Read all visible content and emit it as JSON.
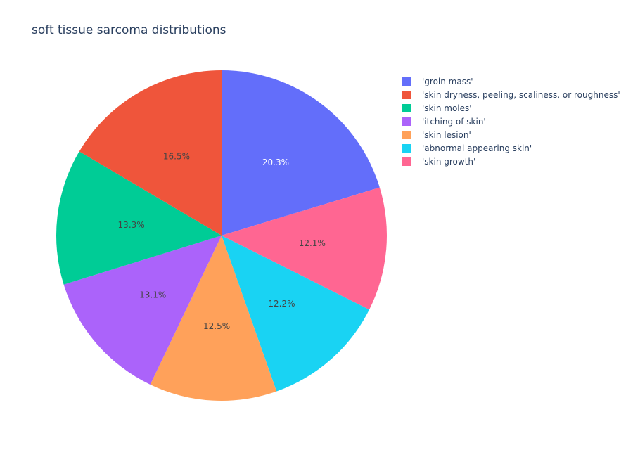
{
  "chart_data": {
    "type": "pie",
    "title": "soft tissue sarcoma distributions",
    "legend_position": "top-right",
    "slices": [
      {
        "label": "'groin mass'",
        "value": 20.3,
        "percent_text": "20.3%",
        "color": "#636efa",
        "text_color": "#ffffff"
      },
      {
        "label": "'skin growth'",
        "value": 12.1,
        "percent_text": "12.1%",
        "color": "#ff6692",
        "text_color": "#444444"
      },
      {
        "label": "'abnormal appearing skin'",
        "value": 12.2,
        "percent_text": "12.2%",
        "color": "#19d3f3",
        "text_color": "#444444"
      },
      {
        "label": "'skin lesion'",
        "value": 12.5,
        "percent_text": "12.5%",
        "color": "#ffa15a",
        "text_color": "#444444"
      },
      {
        "label": "'itching of skin'",
        "value": 13.1,
        "percent_text": "13.1%",
        "color": "#ab63fa",
        "text_color": "#444444"
      },
      {
        "label": "'skin moles'",
        "value": 13.3,
        "percent_text": "13.3%",
        "color": "#00cc96",
        "text_color": "#444444"
      },
      {
        "label": "'skin dryness, peeling, scaliness, or roughness'",
        "value": 16.5,
        "percent_text": "16.5%",
        "color": "#ef553b",
        "text_color": "#444444"
      }
    ],
    "legend": [
      {
        "label": "'groin mass'",
        "color": "#636efa"
      },
      {
        "label": "'skin dryness, peeling, scaliness, or roughness'",
        "color": "#ef553b"
      },
      {
        "label": "'skin moles'",
        "color": "#00cc96"
      },
      {
        "label": "'itching of skin'",
        "color": "#ab63fa"
      },
      {
        "label": "'skin lesion'",
        "color": "#ffa15a"
      },
      {
        "label": "'abnormal appearing skin'",
        "color": "#19d3f3"
      },
      {
        "label": "'skin growth'",
        "color": "#ff6692"
      }
    ]
  }
}
